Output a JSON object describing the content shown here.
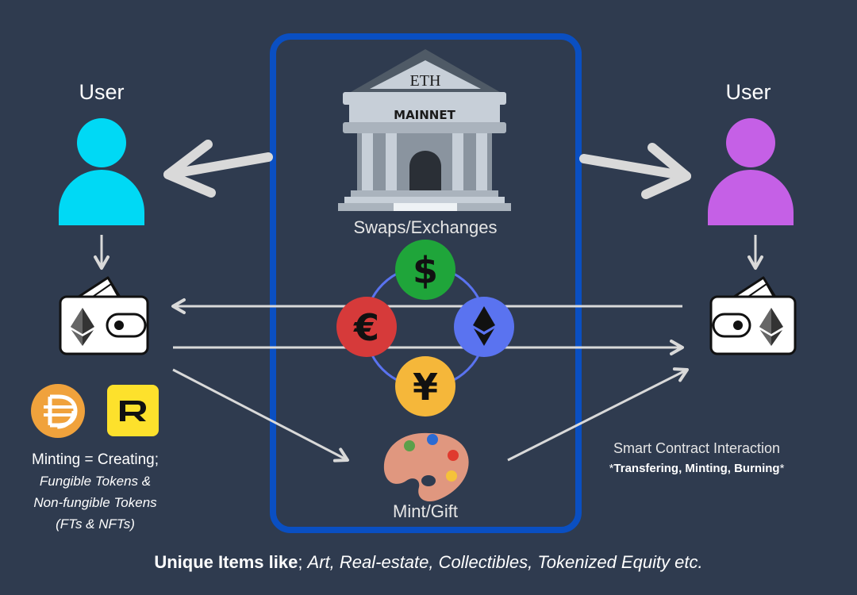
{
  "left_user": {
    "label": "User",
    "color": "#00d9f5"
  },
  "right_user": {
    "label": "User",
    "color": "#c560e6"
  },
  "bank": {
    "pediment_label": "ETH",
    "entablature_label": "MAINNET"
  },
  "swaps_label": "Swaps/Exchanges",
  "currencies": [
    {
      "name": "dollar",
      "symbol": "$",
      "color": "#1fa53a"
    },
    {
      "name": "euro",
      "symbol": "€",
      "color": "#d63a3a"
    },
    {
      "name": "ethereum",
      "symbol": "eth-diamond",
      "color": "#5a73f0"
    },
    {
      "name": "yen",
      "symbol": "¥",
      "color": "#f5b73a"
    }
  ],
  "mint_gift_label": "Mint/Gift",
  "tokens": [
    {
      "name": "dai-token",
      "symbol": "DAI",
      "color": "#f0a23c"
    },
    {
      "name": "rarible-token",
      "symbol": "R",
      "color": "#fde12c"
    }
  ],
  "minting": {
    "line1": "Minting = Creating;",
    "line2": "Fungible Tokens &",
    "line3": "Non-fungible Tokens",
    "line4": "(FTs & NFTs)"
  },
  "smart_contract": {
    "line1": "Smart Contract Interaction",
    "prefix": "*",
    "bold": "Transfering, Minting, Burning",
    "suffix": "*"
  },
  "bottom": {
    "bold": "Unique Items like",
    "semicolon": "; ",
    "italic": "Art, Real-estate, Collectibles, Tokenized Equity etc."
  },
  "colors": {
    "background": "#2f3b4f",
    "box_border": "#0a4fc2",
    "arrow": "#d9d9d9",
    "ring": "#5a73f0"
  }
}
